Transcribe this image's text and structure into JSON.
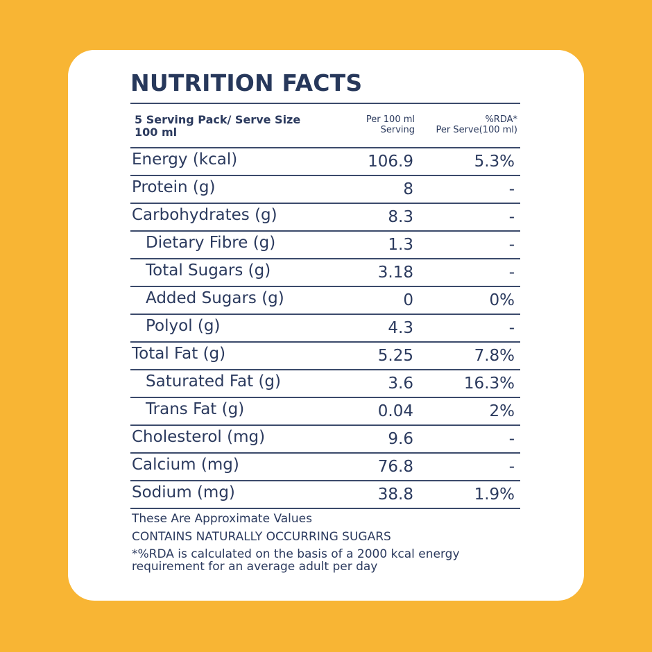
{
  "title": "NUTRITION FACTS",
  "header": {
    "serving": "5 Serving Pack/ Serve Size 100 ml",
    "per_line1": "Per 100 ml",
    "per_line2": "Serving",
    "rda_line1": "%RDA*",
    "rda_line2": "Per Serve(100 ml)"
  },
  "rows": [
    {
      "name": "Energy (kcal)",
      "value": "106.9",
      "rda": "5.3%"
    },
    {
      "name": "Protein (g)",
      "value": "8",
      "rda": "-"
    },
    {
      "name": "Carbohydrates (g)",
      "value": "8.3",
      "rda": "-"
    },
    {
      "name": "Dietary Fibre (g)",
      "value": "1.3",
      "rda": "-"
    },
    {
      "name": "Total Sugars (g)",
      "value": "3.18",
      "rda": "-"
    },
    {
      "name": "Added Sugars (g)",
      "value": "0",
      "rda": "0%"
    },
    {
      "name": "Polyol (g)",
      "value": "4.3",
      "rda": "-"
    },
    {
      "name": "Total Fat (g)",
      "value": "5.25",
      "rda": "7.8%"
    },
    {
      "name": "Saturated Fat (g)",
      "value": "3.6",
      "rda": "16.3%"
    },
    {
      "name": "Trans Fat (g)",
      "value": "0.04",
      "rda": "2%"
    },
    {
      "name": "Cholesterol (mg)",
      "value": "9.6",
      "rda": "-"
    },
    {
      "name": "Calcium (mg)",
      "value": "76.8",
      "rda": "-"
    },
    {
      "name": "Sodium (mg)",
      "value": "38.8",
      "rda": "1.9%"
    }
  ],
  "notes": {
    "approx": "These Are Approximate Values",
    "sugars": "CONTAINS NATURALLY OCCURRING SUGARS",
    "rda_footnote": "*%RDA is calculated on the basis of a 2000 kcal energy requirement for an average adult per day"
  },
  "colors": {
    "background": "#F8B534",
    "card": "#FFFFFF",
    "text": "#2B3A5E"
  }
}
